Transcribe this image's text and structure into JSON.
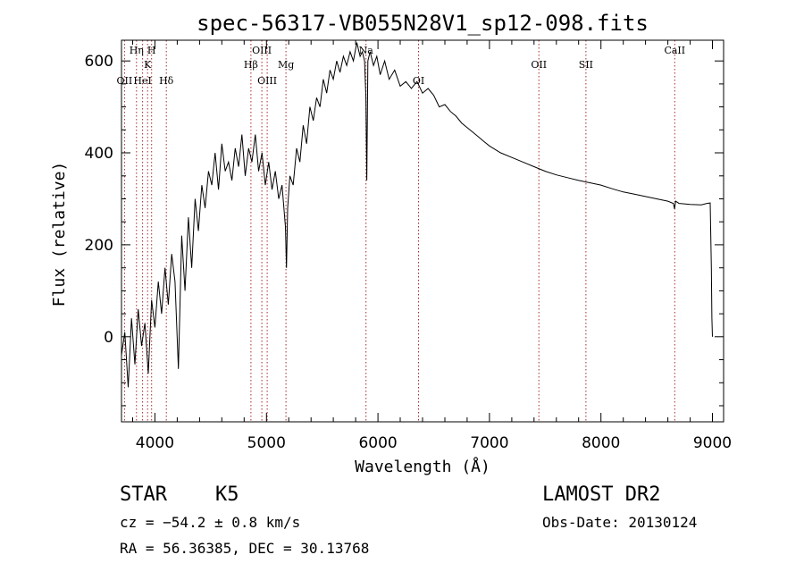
{
  "chart_data": {
    "type": "line",
    "title": "spec-56317-VB055N28V1_sp12-098.fits",
    "xlabel": "Wavelength (Å)",
    "ylabel": "Flux (relative)",
    "xlim": [
      3700,
      9100
    ],
    "ylim": [
      -185,
      645
    ],
    "xticks": [
      4000,
      5000,
      6000,
      7000,
      8000,
      9000
    ],
    "yticks": [
      0,
      200,
      400,
      600
    ],
    "grid": false,
    "series": [
      {
        "color": "#000000",
        "x": [
          3700,
          3730,
          3760,
          3790,
          3820,
          3850,
          3880,
          3910,
          3940,
          3970,
          4000,
          4030,
          4060,
          4090,
          4120,
          4150,
          4180,
          4210,
          4240,
          4270,
          4300,
          4330,
          4360,
          4390,
          4420,
          4450,
          4480,
          4510,
          4540,
          4570,
          4600,
          4630,
          4660,
          4690,
          4720,
          4750,
          4780,
          4810,
          4840,
          4870,
          4900,
          4930,
          4960,
          4990,
          5020,
          5050,
          5080,
          5110,
          5140,
          5170,
          5180,
          5190,
          5210,
          5240,
          5270,
          5300,
          5330,
          5360,
          5390,
          5420,
          5450,
          5480,
          5510,
          5540,
          5570,
          5600,
          5630,
          5660,
          5690,
          5720,
          5750,
          5780,
          5810,
          5840,
          5860,
          5880,
          5892,
          5900,
          5910,
          5930,
          5960,
          5990,
          6020,
          6060,
          6100,
          6150,
          6200,
          6250,
          6300,
          6350,
          6400,
          6450,
          6500,
          6550,
          6600,
          6650,
          6700,
          6750,
          6800,
          6850,
          6900,
          6950,
          7000,
          7100,
          7200,
          7300,
          7400,
          7500,
          7600,
          7700,
          7800,
          7900,
          8000,
          8100,
          8200,
          8300,
          8400,
          8500,
          8600,
          8650,
          8660,
          8670,
          8700,
          8800,
          8900,
          8950,
          8980,
          8990,
          8995,
          9000
        ],
        "values": [
          -40,
          10,
          -110,
          40,
          -60,
          60,
          -20,
          30,
          -80,
          80,
          20,
          120,
          50,
          150,
          70,
          180,
          120,
          -70,
          220,
          100,
          260,
          150,
          300,
          230,
          330,
          280,
          360,
          330,
          400,
          320,
          420,
          360,
          380,
          340,
          410,
          370,
          440,
          350,
          410,
          380,
          440,
          360,
          400,
          330,
          380,
          320,
          360,
          300,
          330,
          240,
          150,
          280,
          350,
          330,
          410,
          380,
          460,
          420,
          500,
          470,
          520,
          500,
          560,
          530,
          580,
          560,
          600,
          575,
          610,
          590,
          620,
          600,
          640,
          610,
          620,
          600,
          520,
          340,
          600,
          620,
          590,
          610,
          570,
          600,
          560,
          580,
          545,
          555,
          540,
          555,
          530,
          540,
          525,
          500,
          505,
          490,
          480,
          465,
          455,
          445,
          435,
          425,
          415,
          400,
          390,
          380,
          370,
          360,
          352,
          346,
          340,
          335,
          330,
          322,
          315,
          310,
          305,
          300,
          295,
          290,
          278,
          295,
          290,
          288,
          287,
          290,
          291,
          150,
          40,
          0
        ]
      }
    ],
    "annotations": [
      "OII",
      "Hη",
      "H",
      "K",
      "HeI",
      "Hδ",
      "Hβ",
      "OIII",
      "OIII",
      "Mg",
      "Na",
      "OI",
      "OII",
      "SII",
      "CaII"
    ],
    "line_markers": [
      {
        "x": 3727,
        "label": "OII"
      },
      {
        "x": 3835,
        "label": "Hη"
      },
      {
        "x": 3889,
        "label": "HeI"
      },
      {
        "x": 3934,
        "label": "K"
      },
      {
        "x": 3970,
        "label": "H"
      },
      {
        "x": 4102,
        "label": "Hδ"
      },
      {
        "x": 4861,
        "label": "Hβ"
      },
      {
        "x": 4959,
        "label": "OIII"
      },
      {
        "x": 5007,
        "label": "OIII"
      },
      {
        "x": 5175,
        "label": "Mg"
      },
      {
        "x": 5893,
        "label": "Na"
      },
      {
        "x": 6364,
        "label": "OI"
      },
      {
        "x": 7443,
        "label": "OII"
      },
      {
        "x": 7865,
        "label": "SII"
      },
      {
        "x": 8662,
        "label": "CaII"
      }
    ]
  },
  "footer": {
    "class_label": "STAR",
    "subclass": "K5",
    "survey": "LAMOST DR2",
    "cz": "cz = −54.2 ± 0.8 km/s",
    "obs_date": "Obs-Date: 20130124",
    "coords": "RA =  56.36385, DEC =  30.13768"
  },
  "colors": {
    "marker_line": "#a52a2a",
    "spectrum": "#000000",
    "axis": "#000000"
  }
}
